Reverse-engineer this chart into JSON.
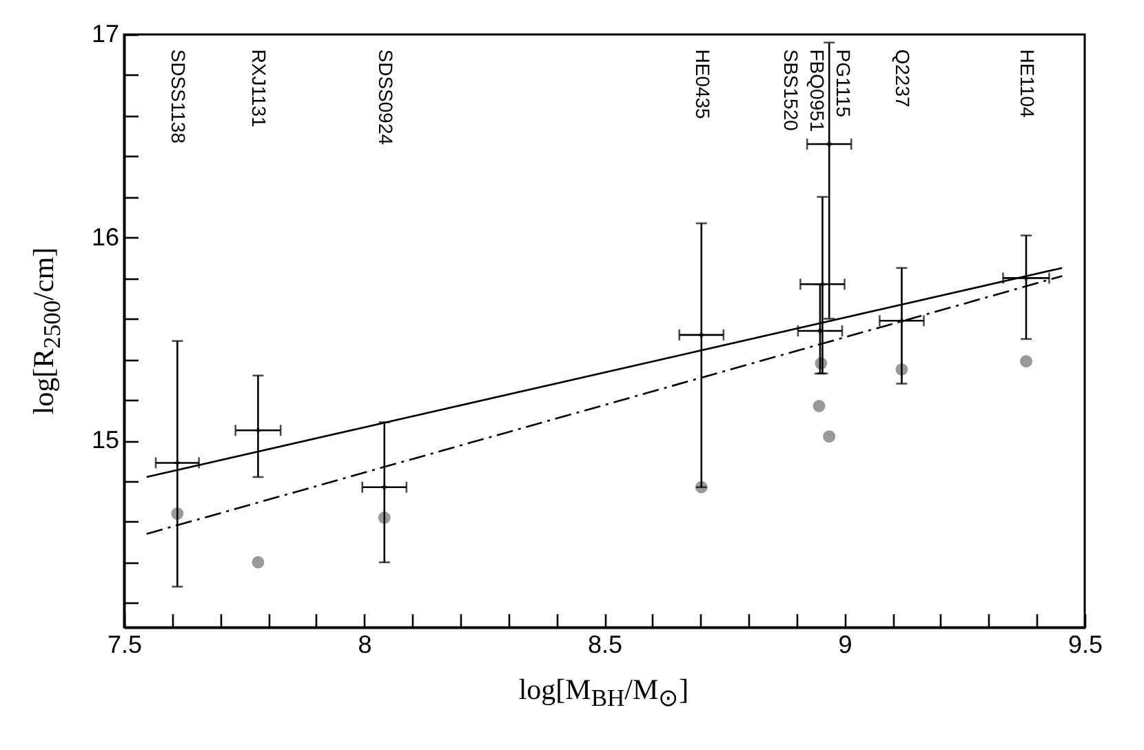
{
  "chart_data": {
    "type": "scatter",
    "xlabel": "log[M$_{BH}$/M$_{⊙}$]",
    "ylabel": "log[R$_{2500}$/cm]",
    "xlim": [
      7.5,
      9.5
    ],
    "ylim": [
      14.08,
      17
    ],
    "xticks": [
      7.5,
      {
        "value": 7.6,
        "label": null
      },
      {
        "value": 7.7,
        "label": null
      },
      {
        "value": 7.8,
        "label": null
      },
      {
        "value": 7.9,
        "label": null
      },
      8,
      {
        "value": 8.1,
        "label": null
      },
      {
        "value": 8.2,
        "label": null
      },
      {
        "value": 8.3,
        "label": null
      },
      {
        "value": 8.4,
        "label": null
      },
      8.5,
      {
        "value": 8.6,
        "label": null
      },
      {
        "value": 8.7,
        "label": null
      },
      {
        "value": 8.8,
        "label": null
      },
      {
        "value": 8.9,
        "label": null
      },
      9,
      {
        "value": 9.1,
        "label": null
      },
      {
        "value": 9.2,
        "label": null
      },
      {
        "value": 9.3,
        "label": null
      },
      {
        "value": 9.4,
        "label": null
      },
      9.5
    ],
    "yticks": [
      {
        "value": 14.2,
        "label": null
      },
      {
        "value": 14.4,
        "label": null
      },
      {
        "value": 14.6,
        "label": null
      },
      {
        "value": 14.8,
        "label": null
      },
      15,
      {
        "value": 15.2,
        "label": null
      },
      {
        "value": 15.4,
        "label": null
      },
      {
        "value": 15.6,
        "label": null
      },
      {
        "value": 15.8,
        "label": null
      },
      16,
      {
        "value": 16.2,
        "label": null
      },
      {
        "value": 16.4,
        "label": null
      },
      {
        "value": 16.6,
        "label": null
      },
      {
        "value": 16.8,
        "label": null
      },
      17
    ],
    "grid": false,
    "series": [
      {
        "type": "line",
        "color": "#000000",
        "line_style": "solid",
        "x": [
          7.547,
          9.453
        ],
        "values": [
          14.82,
          15.85
        ]
      },
      {
        "type": "line",
        "color": "#000000",
        "line_style": "dashed",
        "x": [
          7.547,
          9.453
        ],
        "values": [
          14.54,
          15.81
        ]
      },
      {
        "color": "#999999",
        "marker": "circle",
        "x": [
          7.611,
          7.779,
          8.042,
          8.702,
          8.951,
          8.947,
          8.968,
          9.119,
          9.378
        ],
        "values": [
          14.64,
          14.4,
          14.62,
          14.77,
          15.38,
          15.17,
          15.02,
          15.35,
          15.39
        ]
      },
      {
        "color": "#000000",
        "marker": "cross",
        "x": [
          7.611,
          7.779,
          8.042,
          8.702,
          8.949,
          8.954,
          8.968,
          9.119,
          9.378
        ],
        "values": [
          14.89,
          15.05,
          14.77,
          15.52,
          15.54,
          15.77,
          16.46,
          15.59,
          15.8
        ],
        "errors": [
          [
            14.28,
            15.49
          ],
          [
            14.82,
            15.32
          ],
          [
            14.4,
            15.09
          ],
          [
            14.77,
            16.07
          ],
          [
            15.33,
            15.77
          ],
          [
            15.33,
            16.2
          ],
          [
            15.6,
            16.96
          ],
          [
            15.28,
            15.85
          ],
          [
            15.5,
            16.01
          ]
        ],
        "xerrors": [
          0.045,
          0.047,
          0.046,
          0.046,
          0.046,
          0.046,
          0.046,
          0.046,
          0.048
        ]
      }
    ],
    "annotations": [
      "SDSS1138",
      "RXJ1131",
      "SDSS0924",
      "HE0435",
      "SBS1520",
      "FBQ0951",
      "PG1115",
      "Q2237",
      "HE1104"
    ]
  }
}
